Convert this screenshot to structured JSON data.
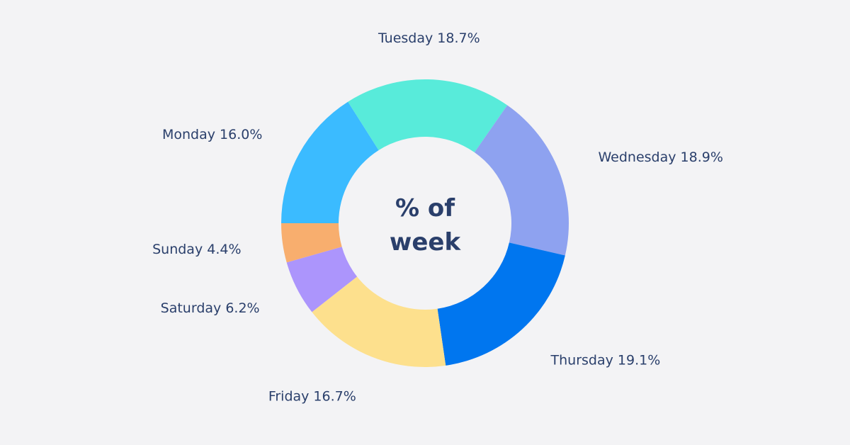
{
  "chart_data": {
    "type": "pie",
    "donut": true,
    "center_text": [
      "% of",
      "week"
    ],
    "unit": "%",
    "categories": [
      "Monday",
      "Tuesday",
      "Wednesday",
      "Thursday",
      "Friday",
      "Saturday",
      "Sunday"
    ],
    "values": [
      16.0,
      18.7,
      18.9,
      19.1,
      16.7,
      6.2,
      4.4
    ],
    "labels": [
      "Monday 16.0%",
      "Tuesday 18.7%",
      "Wednesday 18.9%",
      "Thursday 19.1%",
      "Friday 16.7%",
      "Saturday 6.2%",
      "Sunday 4.4%"
    ],
    "colors": [
      "#3bbbff",
      "#58ebda",
      "#8ea2f0",
      "#0076ef",
      "#fde08d",
      "#ac95fc",
      "#f8ae6e"
    ],
    "start_direction": "west, clockwise",
    "legend": "none (labels beside slices)",
    "grid": false
  }
}
